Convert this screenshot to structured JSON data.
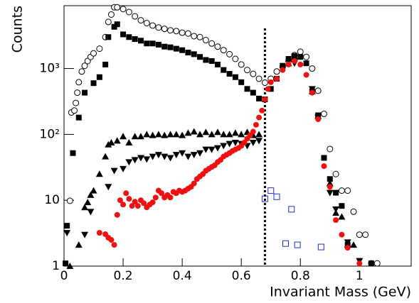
{
  "chart_data": {
    "type": "scatter",
    "x_label": "Invariant Mass (GeV)",
    "y_label": "Counts",
    "xlim": [
      0,
      1.175
    ],
    "ylim": [
      1,
      9000
    ],
    "ylog": true,
    "xticks": [
      0,
      0.2,
      0.4,
      0.6,
      0.8,
      1
    ],
    "yticks": [
      1,
      10,
      {
        "value": 100,
        "label": "10²"
      },
      {
        "value": 1000,
        "label": "10³"
      }
    ],
    "vline": {
      "x": 0.68,
      "color": "#000000"
    },
    "series": [
      {
        "marker": "circle-open",
        "color": "#000000",
        "x": [
          0.02,
          0.025,
          0.035,
          0.04,
          0.045,
          0.05,
          0.06,
          0.07,
          0.08,
          0.09,
          0.1,
          0.12,
          0.14,
          0.15,
          0.16,
          0.17,
          0.18,
          0.2,
          0.22,
          0.24,
          0.26,
          0.28,
          0.3,
          0.32,
          0.34,
          0.36,
          0.38,
          0.4,
          0.42,
          0.44,
          0.46,
          0.48,
          0.5,
          0.52,
          0.54,
          0.56,
          0.58,
          0.6,
          0.62,
          0.64,
          0.66,
          0.68,
          0.7,
          0.72,
          0.74,
          0.76,
          0.78,
          0.8,
          0.82,
          0.84,
          0.86,
          0.88,
          0.9,
          0.92,
          0.94,
          0.96,
          0.98,
          1.0,
          1.02,
          1.04,
          1.06
        ],
        "values": [
          9.8,
          215,
          230,
          300,
          430,
          620,
          900,
          1100,
          1300,
          1500,
          1700,
          2000,
          3000,
          5100,
          6600,
          8500,
          8500,
          8000,
          7200,
          6200,
          5400,
          4900,
          4500,
          4200,
          4000,
          3800,
          3700,
          3500,
          3400,
          3100,
          3000,
          2700,
          2400,
          2150,
          1900,
          1650,
          1400,
          1150,
          950,
          830,
          700,
          610,
          700,
          900,
          1070,
          1300,
          1600,
          1800,
          1500,
          1000,
          460,
          205,
          60,
          25,
          14,
          14,
          6.7,
          3,
          3,
          1.1,
          1.1
        ]
      },
      {
        "marker": "square-filled",
        "color": "#000000",
        "x": [
          0.005,
          0.01,
          0.03,
          0.05,
          0.07,
          0.1,
          0.12,
          0.14,
          0.15,
          0.17,
          0.18,
          0.2,
          0.22,
          0.24,
          0.26,
          0.28,
          0.3,
          0.32,
          0.34,
          0.36,
          0.38,
          0.4,
          0.42,
          0.44,
          0.46,
          0.48,
          0.5,
          0.52,
          0.54,
          0.56,
          0.58,
          0.6,
          0.62,
          0.64,
          0.66,
          0.68,
          0.7,
          0.72,
          0.74,
          0.76,
          0.78,
          0.8,
          0.82,
          0.84,
          0.86,
          0.88,
          0.9,
          0.92,
          0.94,
          0.96,
          1.04
        ],
        "values": [
          1.1,
          4.1,
          52,
          180,
          430,
          600,
          740,
          1150,
          3000,
          4300,
          4700,
          3300,
          3000,
          2800,
          2650,
          2400,
          2400,
          2300,
          2150,
          2100,
          2000,
          1900,
          1750,
          1650,
          1500,
          1350,
          1300,
          1150,
          950,
          830,
          740,
          620,
          490,
          430,
          350,
          340,
          490,
          700,
          1100,
          1400,
          1550,
          1500,
          1200,
          450,
          195,
          44,
          21,
          13,
          8.2,
          2.1,
          1.1
        ]
      },
      {
        "marker": "triangle-up",
        "color": "#000000",
        "x": [
          0.02,
          0.05,
          0.07,
          0.08,
          0.09,
          0.1,
          0.12,
          0.14,
          0.15,
          0.16,
          0.18,
          0.2,
          0.22,
          0.24,
          0.26,
          0.28,
          0.3,
          0.32,
          0.34,
          0.36,
          0.38,
          0.4,
          0.42,
          0.44,
          0.46,
          0.48,
          0.5,
          0.52,
          0.54,
          0.56,
          0.58,
          0.6,
          0.62,
          0.64,
          0.66,
          0.76,
          0.78,
          0.84,
          0.86,
          0.9,
          0.92,
          0.94,
          0.96,
          0.98
        ],
        "values": [
          1,
          2.1,
          7.8,
          9.3,
          12,
          14,
          25,
          46,
          70,
          75,
          80,
          93,
          75,
          93,
          93,
          100,
          97,
          100,
          97,
          100,
          100,
          97,
          105,
          110,
          100,
          108,
          100,
          108,
          100,
          100,
          105,
          100,
          108,
          97,
          100,
          1200,
          1500,
          450,
          190,
          18,
          6.4,
          5.6,
          2.1,
          2.1
        ]
      },
      {
        "marker": "triangle-down",
        "color": "#000000",
        "x": [
          0.01,
          0.07,
          0.09,
          0.15,
          0.17,
          0.2,
          0.22,
          0.24,
          0.26,
          0.28,
          0.3,
          0.32,
          0.34,
          0.36,
          0.38,
          0.4,
          0.42,
          0.44,
          0.46,
          0.48,
          0.5,
          0.52,
          0.54,
          0.56,
          0.58,
          0.6,
          0.62,
          0.64,
          0.66,
          0.78,
          0.84,
          0.86,
          0.9,
          0.92,
          0.96,
          1.0
        ],
        "values": [
          3.2,
          3,
          6.7,
          16,
          28,
          30,
          38,
          41,
          44,
          42,
          46,
          49,
          46,
          44,
          49,
          52,
          46,
          49,
          52,
          59,
          59,
          62,
          67,
          72,
          75,
          72,
          67,
          75,
          80,
          1200,
          490,
          180,
          13,
          7.3,
          2.3,
          1.2
        ]
      },
      {
        "marker": "circle-filled",
        "color": "#ee1111",
        "x": [
          0.12,
          0.14,
          0.15,
          0.16,
          0.17,
          0.18,
          0.19,
          0.2,
          0.21,
          0.22,
          0.23,
          0.24,
          0.25,
          0.26,
          0.27,
          0.28,
          0.29,
          0.3,
          0.31,
          0.32,
          0.33,
          0.34,
          0.35,
          0.36,
          0.37,
          0.38,
          0.39,
          0.4,
          0.41,
          0.42,
          0.43,
          0.44,
          0.45,
          0.46,
          0.47,
          0.48,
          0.49,
          0.5,
          0.51,
          0.52,
          0.53,
          0.54,
          0.55,
          0.56,
          0.57,
          0.58,
          0.59,
          0.6,
          0.61,
          0.62,
          0.63,
          0.64,
          0.65,
          0.66,
          0.67,
          0.68,
          0.69,
          0.7,
          0.72,
          0.74,
          0.76,
          0.78,
          0.8,
          0.82,
          0.84,
          0.86,
          0.88,
          0.9,
          0.92,
          0.94,
          0.96,
          1.0
        ],
        "values": [
          3.2,
          3.05,
          2.7,
          2.5,
          2.1,
          6,
          10,
          8.6,
          12.8,
          10.5,
          8.2,
          9.5,
          8.2,
          10,
          9,
          7.8,
          8.6,
          9.3,
          11,
          14,
          12.8,
          11,
          12,
          11,
          13.4,
          12.8,
          14,
          13.4,
          14,
          15,
          16,
          18,
          21,
          23,
          25,
          28,
          30,
          32,
          34,
          38,
          41,
          46,
          49,
          52,
          56,
          59,
          62,
          67,
          75,
          86,
          97,
          110,
          140,
          180,
          230,
          340,
          490,
          620,
          700,
          950,
          1150,
          1300,
          1150,
          800,
          430,
          170,
          33,
          16,
          5,
          3,
          1.9,
          1.1
        ]
      },
      {
        "marker": "square-open",
        "color": "#1a2fcc",
        "x": [
          0.68,
          0.7,
          0.72,
          0.75,
          0.77,
          0.79,
          0.87
        ],
        "values": [
          10.5,
          14,
          11.3,
          2.2,
          7.3,
          2.1,
          1.95
        ]
      }
    ]
  }
}
